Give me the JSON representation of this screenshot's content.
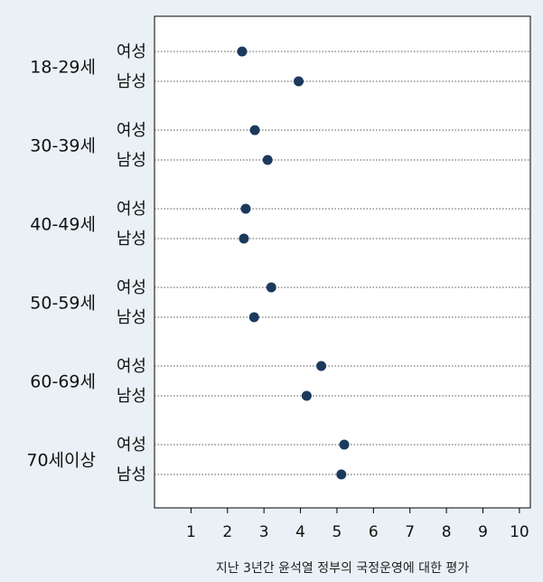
{
  "chart_data": {
    "type": "scatter",
    "title": "",
    "xlabel": "지난 3년간 윤석열 정부의 국정운영에 대한 평가",
    "ylabel": "",
    "xlim": [
      0,
      10.3
    ],
    "xticks": [
      1,
      2,
      3,
      4,
      5,
      6,
      7,
      8,
      9,
      10
    ],
    "grid": "horizontal dotted per row",
    "legend": "none",
    "marker_color": "#1b3a5c",
    "groups": [
      {
        "label": "18-29세",
        "rows": [
          {
            "label": "여성",
            "value": 2.4
          },
          {
            "label": "남성",
            "value": 3.95
          }
        ]
      },
      {
        "label": "30-39세",
        "rows": [
          {
            "label": "여성",
            "value": 2.75
          },
          {
            "label": "남성",
            "value": 3.1
          }
        ]
      },
      {
        "label": "40-49세",
        "rows": [
          {
            "label": "여성",
            "value": 2.5
          },
          {
            "label": "남성",
            "value": 2.45
          }
        ]
      },
      {
        "label": "50-59세",
        "rows": [
          {
            "label": "여성",
            "value": 3.2
          },
          {
            "label": "남성",
            "value": 2.73
          }
        ]
      },
      {
        "label": "60-69세",
        "rows": [
          {
            "label": "여성",
            "value": 4.57
          },
          {
            "label": "남성",
            "value": 4.17
          }
        ]
      },
      {
        "label": "70세이상",
        "rows": [
          {
            "label": "여성",
            "value": 5.2
          },
          {
            "label": "남성",
            "value": 5.12
          }
        ]
      }
    ]
  }
}
